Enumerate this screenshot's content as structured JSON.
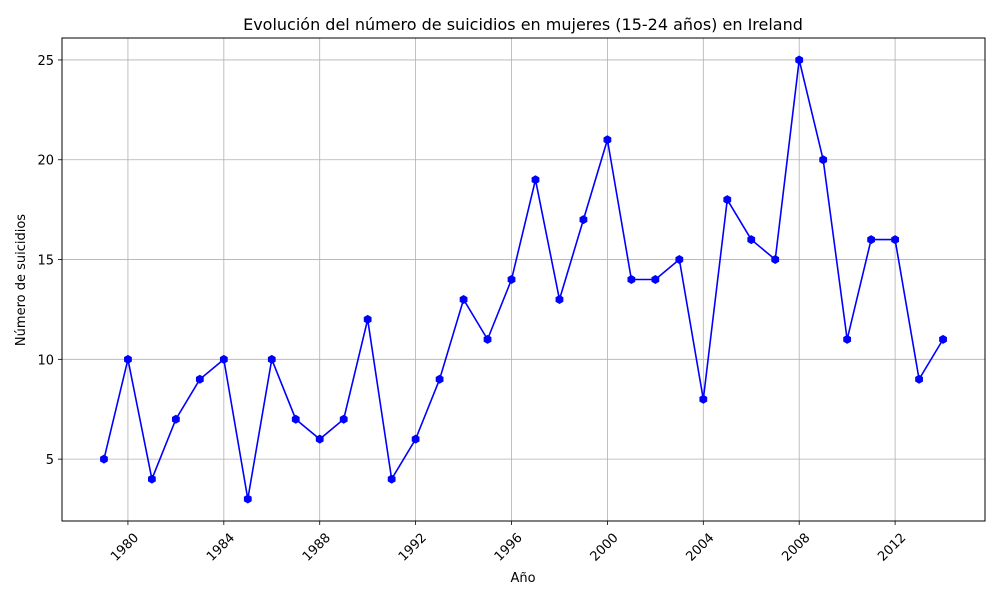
{
  "chart_data": {
    "type": "line",
    "title": "Evolución del número de suicidios en mujeres (15-24 años) en Ireland",
    "xlabel": "Año",
    "ylabel": "Número de suicidios",
    "x": [
      1979,
      1980,
      1981,
      1982,
      1983,
      1984,
      1985,
      1986,
      1987,
      1988,
      1989,
      1990,
      1991,
      1992,
      1993,
      1994,
      1995,
      1996,
      1997,
      1998,
      1999,
      2000,
      2001,
      2002,
      2003,
      2004,
      2005,
      2006,
      2007,
      2008,
      2009,
      2010,
      2011,
      2012,
      2013,
      2014
    ],
    "series": [
      {
        "values": [
          5,
          10,
          4,
          7,
          9,
          10,
          3,
          10,
          7,
          6,
          7,
          12,
          4,
          6,
          9,
          13,
          11,
          14,
          19,
          13,
          17,
          21,
          14,
          14,
          15,
          8,
          18,
          16,
          15,
          25,
          20,
          11,
          16,
          16,
          9,
          11
        ]
      }
    ],
    "xlim": [
      1977.25,
      2015.75
    ],
    "ylim": [
      1.9,
      26.1
    ],
    "xticks": [
      "1980",
      "1984",
      "1988",
      "1992",
      "1996",
      "2000",
      "2004",
      "2008",
      "2012"
    ],
    "yticks": [
      "5",
      "10",
      "15",
      "20",
      "25"
    ],
    "grid": true,
    "line_color": "#0000ff",
    "marker": "hexagon"
  }
}
